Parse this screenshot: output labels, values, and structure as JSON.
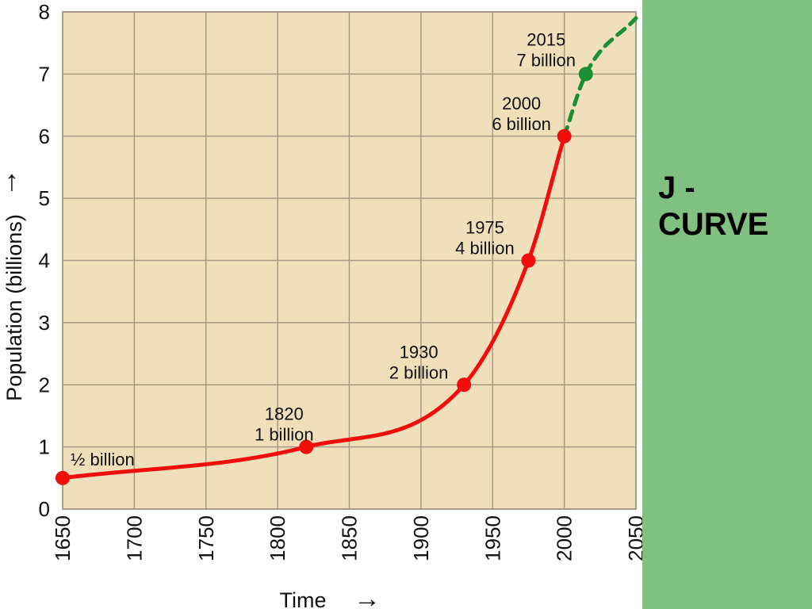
{
  "colors": {
    "plot_background": "#f0dfbb",
    "grid": "#a89a84",
    "historic_series": "#f20d0d",
    "projected_series": "#1a8f34",
    "side_panel": "#80c080",
    "side_text": "#000000"
  },
  "side_panel": {
    "line1": "J -",
    "line2": "CURVE"
  },
  "chart_data": {
    "type": "line",
    "title": "",
    "xlabel": "Time",
    "ylabel": "Population (billions)",
    "xlim": [
      1650,
      2050
    ],
    "ylim": [
      0,
      8
    ],
    "x_ticks": [
      "1650",
      "1700",
      "1750",
      "1800",
      "1850",
      "1900",
      "1950",
      "2000",
      "2050"
    ],
    "y_ticks": [
      "0",
      "1",
      "2",
      "3",
      "4",
      "5",
      "6",
      "7",
      "8"
    ],
    "grid": true,
    "axis_arrows": {
      "x": "→",
      "y": "↑"
    },
    "series": [
      {
        "style": "solid",
        "points": [
          {
            "x": 1650,
            "y": 0.5,
            "label_lines": [
              "½ billion"
            ]
          },
          {
            "x": 1820,
            "y": 1,
            "label_lines": [
              "1820",
              "1 billion"
            ]
          },
          {
            "x": 1930,
            "y": 2,
            "label_lines": [
              "1930",
              "2 billion"
            ]
          },
          {
            "x": 1975,
            "y": 4,
            "label_lines": [
              "1975",
              "4 billion"
            ]
          },
          {
            "x": 2000,
            "y": 6,
            "label_lines": [
              "2000",
              "6 billion"
            ]
          }
        ]
      },
      {
        "style": "dashed",
        "points": [
          {
            "x": 2000,
            "y": 6
          },
          {
            "x": 2015,
            "y": 7,
            "label_lines": [
              "2015",
              "7 billion"
            ]
          },
          {
            "x": 2050,
            "y": 7.9
          }
        ]
      }
    ]
  }
}
